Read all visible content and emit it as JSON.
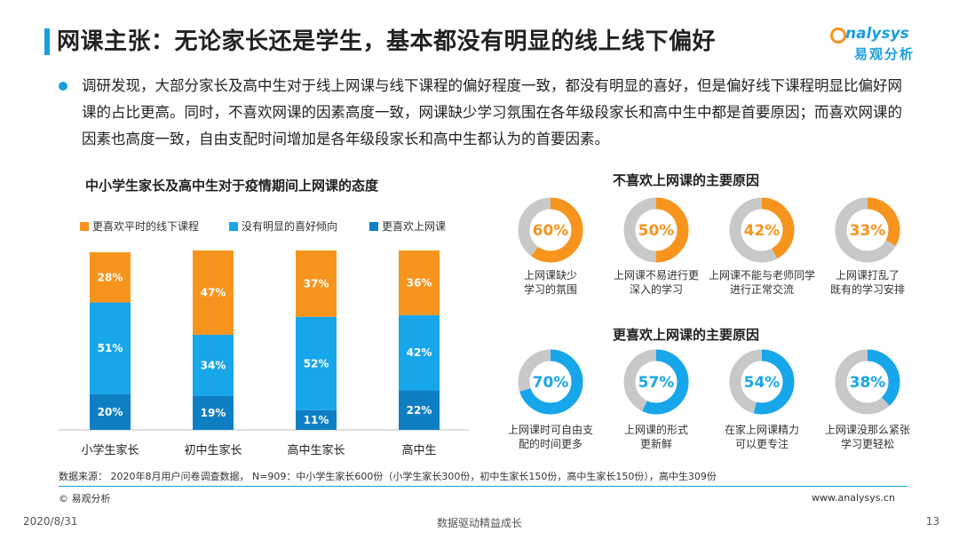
{
  "header": {
    "title": "网课主张：无论家长还是学生，基本都没有明显的线上线下偏好"
  },
  "logo": {
    "en": "nalysys",
    "cn": "易观分析"
  },
  "intro": "调研发现，大部分家长及高中生对于线上网课与线下课程的偏好程度一致，都没有明显的喜好，但是偏好线下课程明显比偏好网课的占比更高。同时，不喜欢网课的因素高度一致，网课缺少学习氛围在各年级段家长和高中生中都是首要原因；而喜欢网课的因素也高度一致，自由支配时间增加是各年级段家长和高中生都认为的首要因素。",
  "colors": {
    "orange": "#f7941d",
    "blue": "#18a6ea",
    "dark_blue": "#0f7fc4",
    "grey": "#c8c8c8",
    "accent": "#1a9ee0"
  },
  "chart_data": [
    {
      "type": "bar",
      "stacked": true,
      "title": "中小学生家长及高中生对于疫情期间上网课的态度",
      "categories": [
        "小学生家长",
        "初中生家长",
        "高中生家长",
        "高中生"
      ],
      "series": [
        {
          "name": "更喜欢平时的线下课程",
          "color": "#f7941d",
          "values": [
            28,
            47,
            37,
            36
          ]
        },
        {
          "name": "没有明显的喜好倾向",
          "color": "#18a6ea",
          "values": [
            51,
            34,
            52,
            42
          ]
        },
        {
          "name": "更喜欢上网课",
          "color": "#0f7fc4",
          "values": [
            20,
            19,
            11,
            22
          ]
        }
      ],
      "value_suffix": "%",
      "legend": "top",
      "ylim": [
        0,
        100
      ]
    },
    {
      "type": "pie",
      "style": "donut",
      "title": "不喜欢上网课的主要原因",
      "color": "#f7941d",
      "items": [
        {
          "value": 60,
          "label_lines": [
            "上网课缺少",
            "学习的氛围"
          ]
        },
        {
          "value": 50,
          "label_lines": [
            "上网课不易进行更",
            "深入的学习"
          ]
        },
        {
          "value": 42,
          "label_lines": [
            "上网课不能与老师同学",
            "进行正常交流"
          ]
        },
        {
          "value": 33,
          "label_lines": [
            "上网课打乱了",
            "既有的学习安排"
          ]
        }
      ]
    },
    {
      "type": "pie",
      "style": "donut",
      "title": "更喜欢上网课的主要原因",
      "color": "#18a6ea",
      "items": [
        {
          "value": 70,
          "label_lines": [
            "上网课时可自由支",
            "配的时间更多"
          ]
        },
        {
          "value": 57,
          "label_lines": [
            "上网课的形式",
            "更新鲜"
          ]
        },
        {
          "value": 54,
          "label_lines": [
            "在家上网课精力",
            "可以更专注"
          ]
        },
        {
          "value": 38,
          "label_lines": [
            "上网课没那么紧张",
            "学习更轻松"
          ]
        }
      ]
    }
  ],
  "footer": {
    "source": "数据来源：    2020年8月用户问卷调查数据，   N=909：中小学生家长600份（小学生家长300份，初中生家长150份，高中生家长150份），高中生309份",
    "copyright": "© 易观分析",
    "site": "www.analysys.cn",
    "date": "2020/8/31",
    "slogan": "数据驱动精益成长",
    "page": "13"
  }
}
